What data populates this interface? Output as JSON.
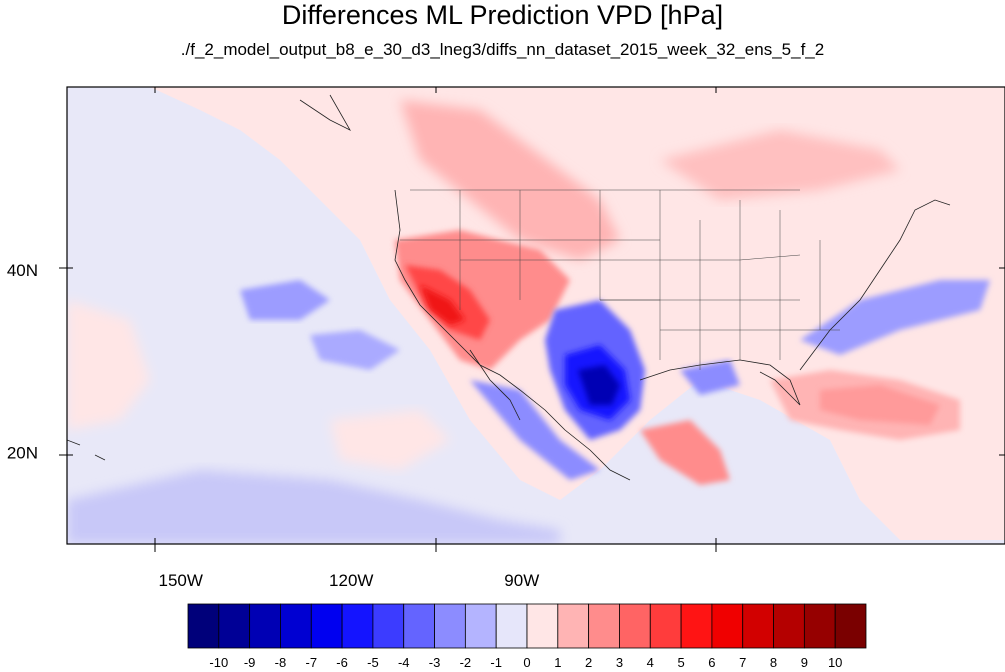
{
  "title": "Differences ML Prediction VPD [hPa]",
  "subtitle": "./f_2_model_output_b8_e_30_d3_lneg3/diffs_nn_dataset_2015_week_32_ens_5_f_2",
  "axes": {
    "lon_range": [
      -170,
      -5
    ],
    "lat_range": [
      10,
      60
    ],
    "x_ticks": [
      {
        "lon": -150,
        "label": "150W"
      },
      {
        "lon": -120,
        "label": "120W"
      },
      {
        "lon": -90,
        "label": "90W"
      }
    ],
    "y_ticks": [
      {
        "lat": 40,
        "label": "40N"
      },
      {
        "lat": 20,
        "label": "20N"
      }
    ]
  },
  "colorbar": {
    "labels": [
      "-10",
      "-9",
      "-8",
      "-7",
      "-6",
      "-5",
      "-4",
      "-3",
      "-2",
      "-1",
      "0",
      "1",
      "2",
      "3",
      "4",
      "5",
      "6",
      "7",
      "8",
      "9",
      "10"
    ],
    "colors": [
      "#00007a",
      "#000096",
      "#0000b4",
      "#0000d2",
      "#0000f0",
      "#1414ff",
      "#3c3cff",
      "#6464ff",
      "#8c8cff",
      "#b4b4ff",
      "#e6e6fa",
      "#ffe6e6",
      "#ffb4b4",
      "#ff8c8c",
      "#ff6464",
      "#ff3c3c",
      "#ff1414",
      "#f00000",
      "#d20000",
      "#b40000",
      "#960000",
      "#7a0000"
    ]
  },
  "colors": {
    "ocean_bg": "#e8e8f8",
    "land_bg": "#ffe8e8",
    "coast": "#222222"
  }
}
